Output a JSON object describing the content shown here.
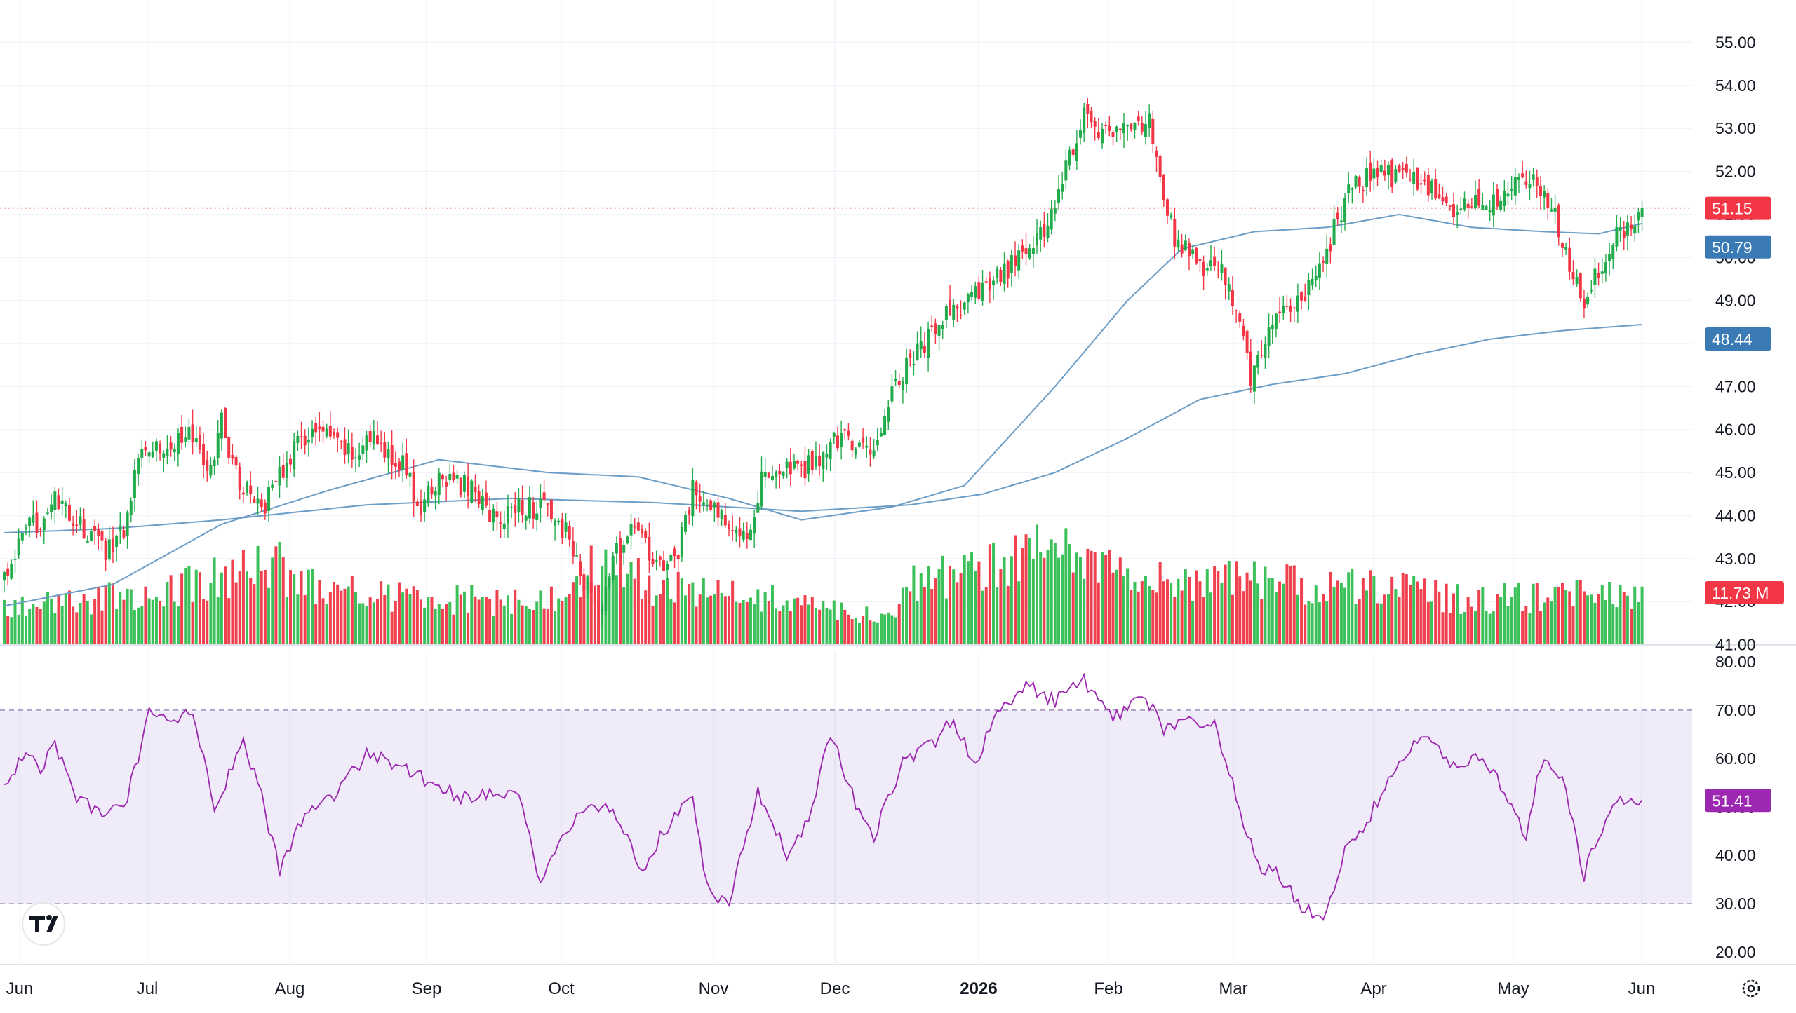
{
  "chart_data": {
    "type": "candlestick",
    "price_axis": {
      "ticks": [
        "55.00",
        "54.00",
        "53.00",
        "52.00",
        "51.00",
        "50.00",
        "49.00",
        "48.00",
        "47.00",
        "46.00",
        "45.00",
        "44.00",
        "43.00",
        "42.00",
        "41.00"
      ],
      "range": [
        40.7,
        55.3
      ]
    },
    "rsi_axis": {
      "ticks": [
        "80.00",
        "70.00",
        "60.00",
        "50.00",
        "40.00",
        "30.00",
        "20.00"
      ],
      "range": [
        18,
        82
      ],
      "band": [
        30,
        70
      ]
    },
    "time_axis": {
      "labels": [
        {
          "text": "Jun",
          "bold": false
        },
        {
          "text": "Jul",
          "bold": false
        },
        {
          "text": "Aug",
          "bold": false
        },
        {
          "text": "Sep",
          "bold": false
        },
        {
          "text": "Oct",
          "bold": false
        },
        {
          "text": "Nov",
          "bold": false
        },
        {
          "text": "Dec",
          "bold": false
        },
        {
          "text": "2026",
          "bold": true
        },
        {
          "text": "Feb",
          "bold": false
        },
        {
          "text": "Mar",
          "bold": false
        },
        {
          "text": "Apr",
          "bold": false
        },
        {
          "text": "May",
          "bold": false
        },
        {
          "text": "Jun",
          "bold": false
        }
      ]
    },
    "badges": {
      "last_price": "51.15",
      "ma_fast": "50.79",
      "ma_slow": "48.44",
      "volume": "11.73 M",
      "rsi": "51.41"
    },
    "price_anchors": [
      [
        0,
        42.6
      ],
      [
        6,
        43.6
      ],
      [
        14,
        44.3
      ],
      [
        28,
        43.2
      ],
      [
        33,
        43.7
      ],
      [
        38,
        45.8
      ],
      [
        45,
        45.5
      ],
      [
        50,
        46.0
      ],
      [
        57,
        45.0
      ],
      [
        60,
        46.2
      ],
      [
        65,
        44.7
      ],
      [
        72,
        44.3
      ],
      [
        78,
        45.3
      ],
      [
        85,
        46.0
      ],
      [
        96,
        45.4
      ],
      [
        101,
        45.8
      ],
      [
        110,
        45.2
      ],
      [
        115,
        44.1
      ],
      [
        120,
        44.9
      ],
      [
        130,
        44.6
      ],
      [
        136,
        43.8
      ],
      [
        142,
        44.3
      ],
      [
        150,
        44.1
      ],
      [
        155,
        43.6
      ],
      [
        160,
        42.4
      ],
      [
        165,
        42.0
      ],
      [
        170,
        43.4
      ],
      [
        176,
        43.7
      ],
      [
        180,
        42.7
      ],
      [
        186,
        43.1
      ],
      [
        190,
        44.6
      ],
      [
        196,
        44.1
      ],
      [
        202,
        43.8
      ],
      [
        205,
        43.6
      ],
      [
        210,
        45.1
      ],
      [
        220,
        45.0
      ],
      [
        232,
        45.9
      ],
      [
        240,
        45.3
      ],
      [
        245,
        47.1
      ],
      [
        252,
        47.8
      ],
      [
        260,
        48.6
      ],
      [
        272,
        49.3
      ],
      [
        285,
        50.4
      ],
      [
        290,
        51.2
      ],
      [
        298,
        53.4
      ],
      [
        303,
        52.9
      ],
      [
        310,
        53.0
      ],
      [
        316,
        53.1
      ],
      [
        319,
        52.0
      ],
      [
        323,
        50.4
      ],
      [
        330,
        49.8
      ],
      [
        338,
        49.5
      ],
      [
        344,
        47.2
      ],
      [
        351,
        48.6
      ],
      [
        358,
        49.0
      ],
      [
        365,
        50.2
      ],
      [
        372,
        51.7
      ],
      [
        380,
        51.9
      ],
      [
        390,
        51.8
      ],
      [
        400,
        51.1
      ],
      [
        410,
        51.3
      ],
      [
        416,
        51.6
      ],
      [
        420,
        51.8
      ],
      [
        426,
        51.4
      ],
      [
        432,
        49.9
      ],
      [
        436,
        49.0
      ],
      [
        442,
        50.1
      ],
      [
        448,
        50.8
      ],
      [
        452,
        51.15
      ]
    ],
    "rsi_anchors": [
      [
        0,
        54
      ],
      [
        6,
        62
      ],
      [
        10,
        58
      ],
      [
        14,
        63
      ],
      [
        20,
        52
      ],
      [
        28,
        48
      ],
      [
        34,
        52
      ],
      [
        40,
        69
      ],
      [
        46,
        67
      ],
      [
        52,
        70
      ],
      [
        58,
        50
      ],
      [
        66,
        63
      ],
      [
        70,
        55
      ],
      [
        76,
        37
      ],
      [
        82,
        47
      ],
      [
        92,
        53
      ],
      [
        100,
        61
      ],
      [
        110,
        58
      ],
      [
        118,
        55
      ],
      [
        126,
        52
      ],
      [
        134,
        53
      ],
      [
        142,
        52
      ],
      [
        148,
        34
      ],
      [
        154,
        44
      ],
      [
        160,
        49
      ],
      [
        168,
        50
      ],
      [
        176,
        37
      ],
      [
        182,
        45
      ],
      [
        190,
        52
      ],
      [
        194,
        33
      ],
      [
        200,
        30
      ],
      [
        208,
        53
      ],
      [
        216,
        40
      ],
      [
        222,
        48
      ],
      [
        228,
        65
      ],
      [
        236,
        49
      ],
      [
        240,
        44
      ],
      [
        248,
        59
      ],
      [
        256,
        63
      ],
      [
        262,
        68
      ],
      [
        268,
        58
      ],
      [
        274,
        70
      ],
      [
        282,
        75
      ],
      [
        290,
        72
      ],
      [
        298,
        76
      ],
      [
        306,
        68
      ],
      [
        314,
        74
      ],
      [
        320,
        66
      ],
      [
        326,
        67
      ],
      [
        334,
        68
      ],
      [
        340,
        52
      ],
      [
        346,
        38
      ],
      [
        352,
        36
      ],
      [
        358,
        29
      ],
      [
        364,
        27
      ],
      [
        370,
        41
      ],
      [
        376,
        47
      ],
      [
        384,
        58
      ],
      [
        392,
        65
      ],
      [
        398,
        59
      ],
      [
        406,
        60
      ],
      [
        412,
        56
      ],
      [
        420,
        44
      ],
      [
        424,
        59
      ],
      [
        430,
        56
      ],
      [
        436,
        36
      ],
      [
        442,
        48
      ],
      [
        448,
        52
      ],
      [
        452,
        51.41
      ]
    ],
    "ma_fast_anchors": [
      [
        0,
        41.9
      ],
      [
        30,
        42.4
      ],
      [
        60,
        43.8
      ],
      [
        90,
        44.6
      ],
      [
        120,
        45.3
      ],
      [
        150,
        45.0
      ],
      [
        175,
        44.9
      ],
      [
        200,
        44.4
      ],
      [
        220,
        43.9
      ],
      [
        245,
        44.2
      ],
      [
        265,
        44.7
      ],
      [
        290,
        47.0
      ],
      [
        310,
        49.0
      ],
      [
        325,
        50.2
      ],
      [
        345,
        50.6
      ],
      [
        365,
        50.7
      ],
      [
        385,
        51.0
      ],
      [
        405,
        50.7
      ],
      [
        425,
        50.6
      ],
      [
        440,
        50.55
      ],
      [
        452,
        50.79
      ]
    ],
    "ma_slow_anchors": [
      [
        0,
        43.6
      ],
      [
        30,
        43.7
      ],
      [
        60,
        43.9
      ],
      [
        100,
        44.25
      ],
      [
        140,
        44.4
      ],
      [
        180,
        44.3
      ],
      [
        220,
        44.1
      ],
      [
        250,
        44.25
      ],
      [
        270,
        44.5
      ],
      [
        290,
        45.0
      ],
      [
        310,
        45.8
      ],
      [
        330,
        46.7
      ],
      [
        350,
        47.05
      ],
      [
        370,
        47.3
      ],
      [
        390,
        47.75
      ],
      [
        410,
        48.1
      ],
      [
        430,
        48.3
      ],
      [
        452,
        48.44
      ]
    ],
    "volume_anchors": [
      [
        0,
        1.0
      ],
      [
        40,
        1.2
      ],
      [
        75,
        2.0
      ],
      [
        80,
        1.5
      ],
      [
        100,
        1.2
      ],
      [
        150,
        1.0
      ],
      [
        160,
        1.8
      ],
      [
        170,
        1.9
      ],
      [
        180,
        1.4
      ],
      [
        200,
        1.3
      ],
      [
        222,
        0.9
      ],
      [
        245,
        0.7
      ],
      [
        250,
        1.6
      ],
      [
        270,
        1.8
      ],
      [
        290,
        2.4
      ],
      [
        300,
        1.9
      ],
      [
        320,
        1.5
      ],
      [
        345,
        1.6
      ],
      [
        360,
        1.4
      ],
      [
        380,
        1.4
      ],
      [
        400,
        1.1
      ],
      [
        430,
        1.2
      ],
      [
        452,
        1.2
      ]
    ],
    "volume_scale_ref": "11.73 M"
  }
}
